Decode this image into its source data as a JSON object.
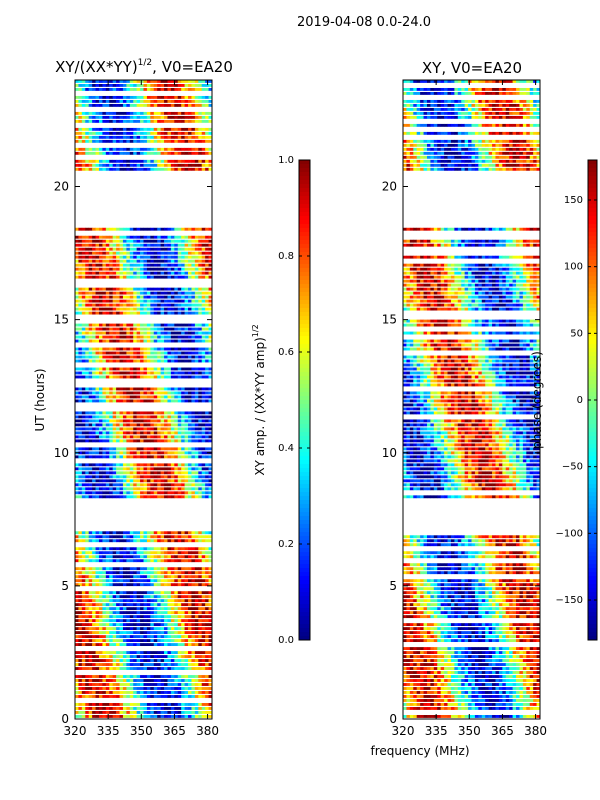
{
  "figure": {
    "suptitle": "2019-04-08 0.0-24.0",
    "shared_xlabel": "frequency (MHz)"
  },
  "colors": {
    "background": "#ffffff",
    "axis": "#000000",
    "jet_stops": [
      "#00007f",
      "#0000ff",
      "#007fff",
      "#00ffff",
      "#7fff7f",
      "#ffff00",
      "#ff7f00",
      "#ff0000",
      "#7f0000"
    ]
  },
  "chart_data": [
    {
      "type": "heatmap",
      "name": "amplitude",
      "title_main": "XY/(XX*YY)",
      "title_sup": "1/2",
      "title_tail": ", V0=EA20",
      "xlabel": "",
      "ylabel": "UT (hours)",
      "xlim": [
        320,
        382
      ],
      "ylim": [
        0,
        24
      ],
      "xticks": [
        "320",
        "335",
        "350",
        "365",
        "380"
      ],
      "yticks": [
        "0",
        "5",
        "10",
        "15",
        "20"
      ],
      "xtick_values": [
        320,
        335,
        350,
        365,
        380
      ],
      "ytick_values": [
        0,
        5,
        10,
        15,
        20
      ],
      "blank_time_ranges": [
        [
          7.1,
          8.3
        ],
        [
          18.5,
          20.5
        ]
      ],
      "colorbar": {
        "label_main": "XY amp. / (XX*YY amp)",
        "label_sup": "1/2",
        "range": [
          0.0,
          1.0
        ],
        "ticks": [
          "0.0",
          "0.2",
          "0.4",
          "0.6",
          "0.8",
          "1.0"
        ],
        "tick_values": [
          0.0,
          0.2,
          0.4,
          0.6,
          0.8,
          1.0
        ]
      }
    },
    {
      "type": "heatmap",
      "name": "phase",
      "title": "XY, V0=EA20",
      "xlabel": "frequency (MHz)",
      "ylabel": "",
      "xlim": [
        320,
        382
      ],
      "ylim": [
        0,
        24
      ],
      "xticks": [
        "320",
        "335",
        "350",
        "365",
        "380"
      ],
      "yticks": [
        "0",
        "5",
        "10",
        "15",
        "20"
      ],
      "xtick_values": [
        320,
        335,
        350,
        365,
        380
      ],
      "ytick_values": [
        0,
        5,
        10,
        15,
        20
      ],
      "blank_time_ranges": [
        [
          7.1,
          8.3
        ],
        [
          18.5,
          20.5
        ]
      ],
      "colorbar": {
        "label": "phase (degrees)",
        "range": [
          -180,
          180
        ],
        "ticks": [
          "−150",
          "−100",
          "−50",
          "0",
          "50",
          "100",
          "150"
        ],
        "tick_values": [
          -150,
          -100,
          -50,
          0,
          50,
          100,
          150
        ]
      }
    }
  ]
}
